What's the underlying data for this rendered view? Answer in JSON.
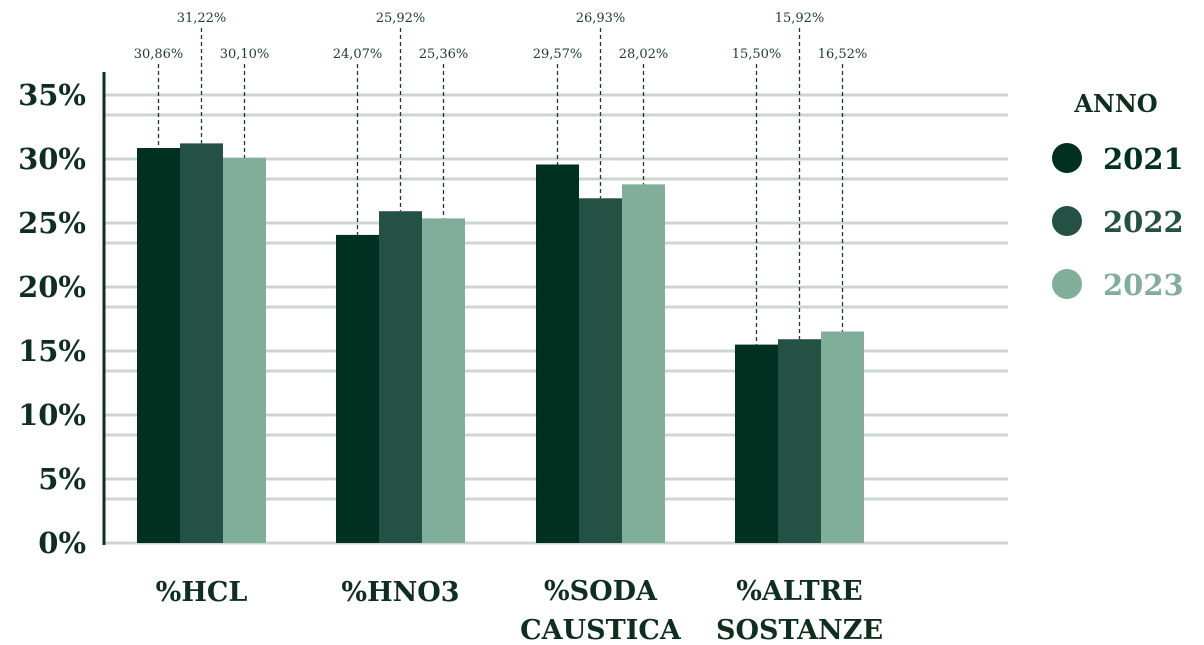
{
  "chart_data": {
    "type": "bar",
    "categories": [
      "%HCL",
      "%HNO3",
      "%SODA CAUSTICA",
      "%ALTRE SOSTANZE"
    ],
    "category_lines": [
      [
        "%HCL"
      ],
      [
        "%HNO3"
      ],
      [
        "%SODA",
        "CAUSTICA"
      ],
      [
        "%ALTRE",
        "SOSTANZE"
      ]
    ],
    "series": [
      {
        "name": "2021",
        "values": [
          30.86,
          24.07,
          29.57,
          15.5
        ],
        "labels": [
          "30,86%",
          "24,07%",
          "29,57%",
          "15,50%"
        ],
        "color": "#00301f"
      },
      {
        "name": "2022",
        "values": [
          31.22,
          25.92,
          26.93,
          15.92
        ],
        "labels": [
          "31,22%",
          "25,92%",
          "26,93%",
          "15,92%"
        ],
        "color": "#245143"
      },
      {
        "name": "2023",
        "values": [
          30.1,
          25.36,
          28.02,
          16.52
        ],
        "labels": [
          "30,10%",
          "25,36%",
          "28,02%",
          "16,52%"
        ],
        "color": "#80ae9b"
      }
    ],
    "yticks": [
      "0%",
      "5%",
      "10%",
      "15%",
      "20%",
      "25%",
      "30%",
      "35%"
    ],
    "ylim": [
      0,
      35
    ],
    "grid": true,
    "legend": {
      "title": "ANNO",
      "position": "right"
    }
  },
  "colors": {
    "axis": "#0f2e22",
    "grid": "#cdd4d1",
    "leader": "#1c3b30",
    "text": "#0f2e22"
  }
}
